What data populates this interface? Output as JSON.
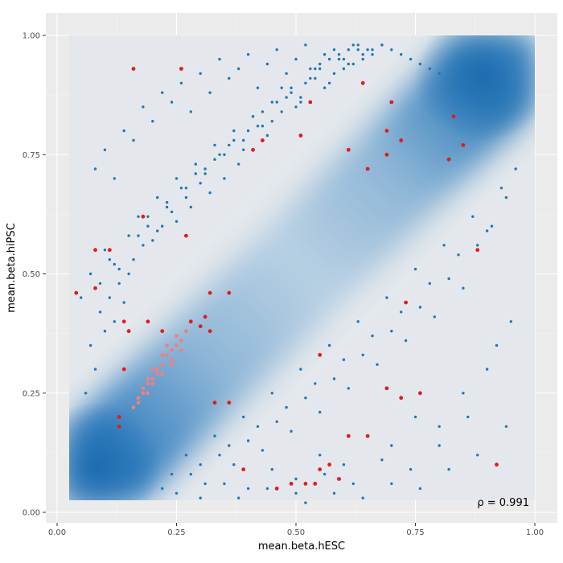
{
  "chart_data": {
    "type": "scatter",
    "title": "",
    "xlabel": "mean.beta.hESC",
    "ylabel": "mean.beta.hiPSC",
    "xlim": [
      0.0,
      1.0
    ],
    "ylim": [
      0.0,
      1.0
    ],
    "x_ticks": [
      "0.00",
      "0.25",
      "0.50",
      "0.75",
      "1.00"
    ],
    "y_ticks": [
      "0.00",
      "0.25",
      "0.50",
      "0.75",
      "1.00"
    ],
    "grid": true,
    "legend": "none",
    "annotation": "ρ = 0.991",
    "colors": {
      "panel_background": "#ebebeb",
      "density_high": "#2171b5",
      "density_low": "#e6e9ec",
      "points_main": "#1f77b4",
      "points_highlight": "#e31a1c",
      "points_highlight_light": "#f08080"
    },
    "background_density": {
      "description_type": "2d-density-raster",
      "peaks": [
        {
          "x": 0.08,
          "y": 0.1,
          "value": 1.0
        },
        {
          "x": 0.9,
          "y": 0.9,
          "value": 1.0
        }
      ],
      "ridge": "diagonal y = x"
    },
    "series": [
      {
        "style": "main",
        "x": [
          0.06,
          0.08,
          0.07,
          0.1,
          0.12,
          0.09,
          0.11,
          0.14,
          0.13,
          0.15,
          0.1,
          0.12,
          0.16,
          0.18,
          0.17,
          0.2,
          0.22,
          0.19,
          0.21,
          0.24,
          0.23,
          0.25,
          0.27,
          0.26,
          0.28,
          0.3,
          0.29,
          0.32,
          0.31,
          0.33,
          0.35,
          0.34,
          0.36,
          0.38,
          0.37,
          0.4,
          0.39,
          0.42,
          0.41,
          0.44,
          0.43,
          0.46,
          0.45,
          0.48,
          0.47,
          0.5,
          0.49,
          0.52,
          0.51,
          0.54,
          0.53,
          0.56,
          0.55,
          0.58,
          0.57,
          0.6,
          0.59,
          0.62,
          0.61,
          0.64,
          0.63,
          0.66,
          0.65,
          0.68,
          0.7,
          0.72,
          0.74,
          0.76,
          0.78,
          0.8,
          0.08,
          0.1,
          0.12,
          0.14,
          0.16,
          0.18,
          0.2,
          0.22,
          0.24,
          0.26,
          0.28,
          0.3,
          0.32,
          0.34,
          0.36,
          0.38,
          0.4,
          0.42,
          0.44,
          0.46,
          0.48,
          0.5,
          0.52,
          0.54,
          0.56,
          0.58,
          0.6,
          0.62,
          0.64,
          0.66,
          0.68,
          0.05,
          0.07,
          0.09,
          0.11,
          0.13,
          0.15,
          0.17,
          0.19,
          0.21,
          0.23,
          0.25,
          0.27,
          0.29,
          0.31,
          0.33,
          0.35,
          0.37,
          0.39,
          0.41,
          0.43,
          0.45,
          0.47,
          0.49,
          0.51,
          0.53,
          0.55,
          0.57,
          0.59,
          0.61,
          0.63,
          0.22,
          0.25,
          0.28,
          0.31,
          0.34,
          0.37,
          0.4,
          0.43,
          0.46,
          0.49,
          0.52,
          0.55,
          0.58,
          0.61,
          0.64,
          0.67,
          0.7,
          0.73,
          0.76,
          0.79,
          0.82,
          0.85,
          0.88,
          0.91,
          0.94,
          0.96,
          0.24,
          0.27,
          0.3,
          0.33,
          0.36,
          0.39,
          0.42,
          0.45,
          0.48,
          0.51,
          0.54,
          0.57,
          0.6,
          0.63,
          0.66,
          0.69,
          0.72,
          0.75,
          0.78,
          0.81,
          0.84,
          0.87,
          0.9,
          0.93,
          0.3,
          0.35,
          0.4,
          0.45,
          0.5,
          0.55,
          0.6,
          0.65,
          0.7,
          0.75,
          0.8,
          0.85,
          0.9,
          0.95,
          0.38,
          0.44,
          0.5,
          0.56,
          0.62,
          0.68,
          0.74,
          0.8,
          0.86,
          0.92,
          0.52,
          0.58,
          0.64,
          0.7,
          0.76,
          0.82,
          0.88,
          0.94
        ],
        "y": [
          0.25,
          0.3,
          0.35,
          0.38,
          0.4,
          0.42,
          0.45,
          0.44,
          0.48,
          0.5,
          0.55,
          0.52,
          0.53,
          0.56,
          0.58,
          0.57,
          0.6,
          0.62,
          0.59,
          0.63,
          0.65,
          0.61,
          0.66,
          0.68,
          0.64,
          0.69,
          0.71,
          0.67,
          0.72,
          0.74,
          0.7,
          0.75,
          0.77,
          0.73,
          0.78,
          0.8,
          0.76,
          0.81,
          0.83,
          0.79,
          0.84,
          0.86,
          0.82,
          0.87,
          0.89,
          0.85,
          0.88,
          0.9,
          0.86,
          0.91,
          0.93,
          0.89,
          0.94,
          0.92,
          0.95,
          0.93,
          0.96,
          0.94,
          0.97,
          0.95,
          0.98,
          0.96,
          0.97,
          0.98,
          0.97,
          0.96,
          0.95,
          0.94,
          0.93,
          0.92,
          0.72,
          0.76,
          0.7,
          0.8,
          0.78,
          0.85,
          0.82,
          0.88,
          0.86,
          0.9,
          0.84,
          0.92,
          0.88,
          0.95,
          0.91,
          0.93,
          0.96,
          0.89,
          0.94,
          0.97,
          0.92,
          0.95,
          0.98,
          0.93,
          0.96,
          0.97,
          0.95,
          0.98,
          0.96,
          0.97,
          0.98,
          0.45,
          0.5,
          0.48,
          0.53,
          0.51,
          0.58,
          0.62,
          0.6,
          0.66,
          0.64,
          0.7,
          0.68,
          0.73,
          0.71,
          0.77,
          0.75,
          0.8,
          0.78,
          0.83,
          0.81,
          0.86,
          0.84,
          0.89,
          0.87,
          0.91,
          0.93,
          0.9,
          0.95,
          0.94,
          0.97,
          0.05,
          0.04,
          0.08,
          0.06,
          0.12,
          0.1,
          0.15,
          0.13,
          0.19,
          0.17,
          0.24,
          0.21,
          0.28,
          0.26,
          0.33,
          0.31,
          0.38,
          0.36,
          0.43,
          0.41,
          0.49,
          0.47,
          0.56,
          0.6,
          0.66,
          0.72,
          0.08,
          0.12,
          0.1,
          0.16,
          0.14,
          0.2,
          0.18,
          0.25,
          0.22,
          0.3,
          0.27,
          0.35,
          0.32,
          0.4,
          0.37,
          0.45,
          0.42,
          0.51,
          0.48,
          0.56,
          0.54,
          0.62,
          0.59,
          0.68,
          0.03,
          0.06,
          0.05,
          0.09,
          0.07,
          0.12,
          0.1,
          0.16,
          0.14,
          0.2,
          0.18,
          0.25,
          0.3,
          0.4,
          0.03,
          0.05,
          0.04,
          0.08,
          0.06,
          0.11,
          0.09,
          0.14,
          0.2,
          0.35,
          0.02,
          0.04,
          0.03,
          0.06,
          0.05,
          0.09,
          0.12,
          0.18
        ]
      },
      {
        "style": "highlight",
        "x": [
          0.16,
          0.26,
          0.18,
          0.08,
          0.11,
          0.04,
          0.08,
          0.14,
          0.15,
          0.27,
          0.32,
          0.36,
          0.41,
          0.43,
          0.51,
          0.53,
          0.61,
          0.64,
          0.65,
          0.69,
          0.7,
          0.72,
          0.69,
          0.82,
          0.83,
          0.85,
          0.88,
          0.14,
          0.13,
          0.13,
          0.19,
          0.22,
          0.28,
          0.3,
          0.31,
          0.33,
          0.36,
          0.32,
          0.39,
          0.46,
          0.49,
          0.55,
          0.57,
          0.59,
          0.55,
          0.54,
          0.52,
          0.61,
          0.65,
          0.69,
          0.72,
          0.76,
          0.73,
          0.92
        ],
        "y": [
          0.93,
          0.93,
          0.62,
          0.55,
          0.55,
          0.46,
          0.47,
          0.4,
          0.38,
          0.58,
          0.46,
          0.46,
          0.76,
          0.78,
          0.79,
          0.86,
          0.76,
          0.9,
          0.72,
          0.8,
          0.86,
          0.78,
          0.75,
          0.74,
          0.83,
          0.77,
          0.55,
          0.3,
          0.2,
          0.18,
          0.4,
          0.38,
          0.4,
          0.39,
          0.41,
          0.23,
          0.23,
          0.38,
          0.09,
          0.05,
          0.06,
          0.33,
          0.1,
          0.07,
          0.09,
          0.06,
          0.06,
          0.16,
          0.16,
          0.26,
          0.24,
          0.25,
          0.44,
          0.1
        ]
      },
      {
        "style": "highlight-light",
        "x": [
          0.16,
          0.17,
          0.18,
          0.19,
          0.2,
          0.19,
          0.21,
          0.22,
          0.23,
          0.24,
          0.25,
          0.24,
          0.26,
          0.27,
          0.25,
          0.23,
          0.22,
          0.21,
          0.2,
          0.18,
          0.17,
          0.26,
          0.24,
          0.22,
          0.2,
          0.19
        ],
        "y": [
          0.22,
          0.24,
          0.26,
          0.28,
          0.3,
          0.27,
          0.29,
          0.31,
          0.33,
          0.34,
          0.35,
          0.32,
          0.36,
          0.38,
          0.37,
          0.35,
          0.33,
          0.3,
          0.28,
          0.25,
          0.23,
          0.34,
          0.31,
          0.29,
          0.27,
          0.25
        ]
      }
    ]
  }
}
